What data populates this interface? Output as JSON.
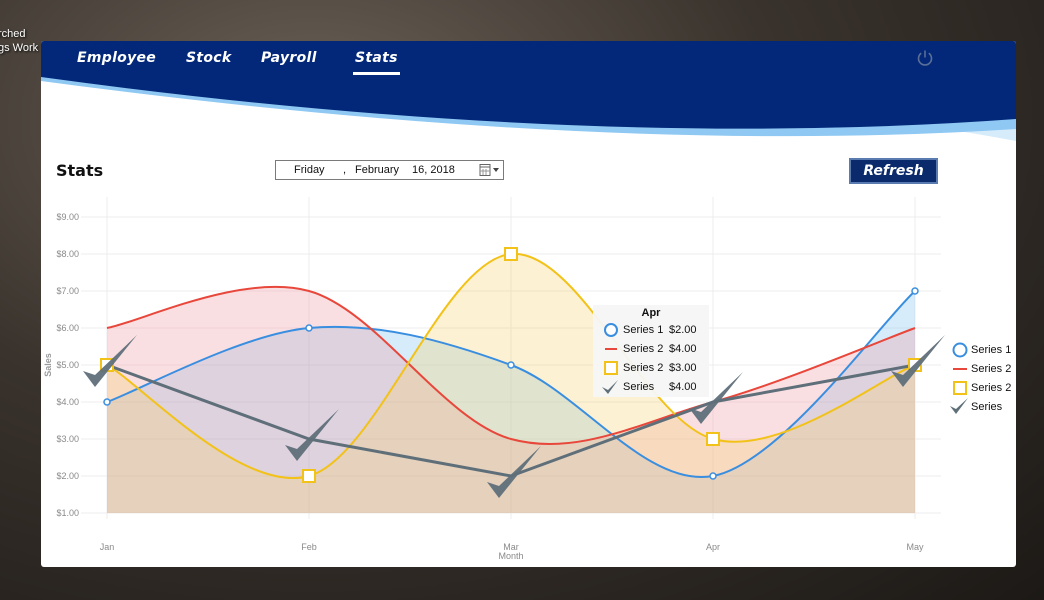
{
  "desktop": {
    "line1": "rched",
    "line2": "gs Work"
  },
  "nav": {
    "tabs": [
      {
        "label": "Employee"
      },
      {
        "label": "Stock"
      },
      {
        "label": "Payroll"
      },
      {
        "label": "Stats"
      }
    ],
    "active": "Stats"
  },
  "colors": {
    "header": "#03287a",
    "series1": "#3a8ee0",
    "series2": "#e8473b",
    "series3": "#f2c218",
    "series4": "#5f6f7a"
  },
  "page": {
    "title": "Stats",
    "refresh_label": "Refresh"
  },
  "date_picker": {
    "day": "Friday",
    "comma": ",",
    "month": "February",
    "date": "16, 2018"
  },
  "chart_data": {
    "type": "line",
    "categories": [
      "Jan",
      "Feb",
      "Mar",
      "Apr",
      "May"
    ],
    "xlabel": "Month",
    "ylabel": "Sales",
    "yticks": [
      "$1.00",
      "$2.00",
      "$3.00",
      "$4.00",
      "$5.00",
      "$6.00",
      "$7.00",
      "$8.00",
      "$9.00"
    ],
    "ylim": [
      1,
      9
    ],
    "grid": true,
    "legend_position": "right",
    "series": [
      {
        "name": "Series 1",
        "values": [
          4,
          6,
          5,
          2,
          7
        ],
        "style": "smooth-area",
        "marker": "circle"
      },
      {
        "name": "Series 2",
        "values": [
          6,
          7,
          3,
          4,
          6
        ],
        "style": "smooth-area",
        "marker": "none"
      },
      {
        "name": "Series 2",
        "values": [
          5,
          2,
          8,
          3,
          5
        ],
        "style": "smooth-area",
        "marker": "square"
      },
      {
        "name": "Series",
        "values": [
          5,
          3,
          2,
          4,
          5
        ],
        "style": "straight",
        "marker": "check"
      }
    ],
    "tooltip": {
      "title": "Apr",
      "rows": [
        {
          "label": "Series 1",
          "value": "$2.00"
        },
        {
          "label": "Series 2",
          "value": "$4.00"
        },
        {
          "label": "Series 2",
          "value": "$3.00"
        },
        {
          "label": "Series",
          "value": "$4.00"
        }
      ]
    }
  }
}
